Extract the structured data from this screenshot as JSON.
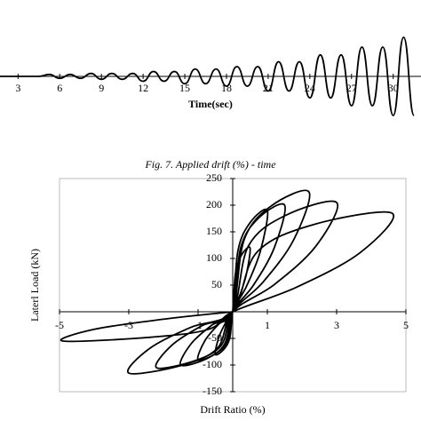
{
  "chart_data": [
    {
      "type": "line",
      "caption": "Fig. 7.  Applied drift (%) - time",
      "x_label": "Time(sec)",
      "x": [
        1.7,
        4.5,
        5.25,
        6.0,
        6.75,
        7.5,
        8.25,
        9.0,
        9.75,
        10.5,
        11.25,
        12.0,
        12.75,
        13.5,
        14.25,
        15.0,
        15.75,
        16.5,
        17.25,
        18.0,
        18.75,
        19.5,
        20.25,
        21.0,
        21.75,
        22.5,
        23.25,
        24.0,
        24.75,
        25.5,
        26.25,
        27.0,
        27.75,
        28.5,
        29.25,
        30.0,
        30.75,
        31.5
      ],
      "values": [
        0,
        0,
        0.2,
        -0.2,
        0.2,
        -0.2,
        0.3,
        -0.3,
        0.3,
        -0.3,
        0.3,
        -0.5,
        0.5,
        -0.5,
        0.5,
        -0.75,
        0.75,
        -0.75,
        0.75,
        -1.0,
        1.0,
        -1.0,
        1.0,
        -1.5,
        1.5,
        -1.5,
        1.5,
        -2.2,
        2.2,
        -2.2,
        2.2,
        -3.0,
        3.0,
        -3.0,
        3.0,
        -4.0,
        4.0,
        -4.0
      ],
      "color": "#000000",
      "xlim": [
        1.7,
        32
      ],
      "ylim": [
        -4.5,
        4.5
      ],
      "xticks": [
        3,
        6,
        9,
        12,
        15,
        18,
        21,
        24,
        27,
        30
      ]
    },
    {
      "type": "line",
      "x_label": "Drift Ratio (%)",
      "y_label": "Laterl Load (kN)",
      "color": "#000000",
      "x": [
        0,
        0.08,
        0.25,
        0.5,
        0.4,
        0.2,
        0,
        -0.08,
        -0.25,
        -0.5,
        -0.4,
        -0.2,
        0,
        0.15,
        0.5,
        1.0,
        0.8,
        0.4,
        0,
        -0.15,
        -0.5,
        -1.0,
        -0.8,
        -0.4,
        0,
        0.23,
        0.75,
        1.5,
        1.2,
        0.6,
        0,
        -0.23,
        -0.75,
        -1.5,
        -1.2,
        -0.6,
        0,
        0.33,
        1.1,
        2.2,
        1.76,
        0.88,
        0,
        -0.33,
        -1.1,
        -2.2,
        -1.76,
        -0.88,
        0,
        0.45,
        1.5,
        3.0,
        2.4,
        1.2,
        0,
        -0.45,
        -1.5,
        -3.0,
        -2.4,
        -1.2,
        0,
        0.69,
        2.3,
        4.6,
        3.68,
        1.84,
        0,
        -0.7,
        -2.4,
        -4.9,
        -4.0,
        -2.0,
        0
      ],
      "values": [
        0,
        72,
        106,
        120,
        72,
        30,
        0,
        -48,
        -70,
        -80,
        -48,
        -20,
        0,
        114,
        167,
        190,
        114,
        48,
        0,
        -54,
        -79,
        -90,
        -54,
        -23,
        0,
        120,
        176,
        200,
        120,
        50,
        0,
        -60,
        -88,
        -100,
        -60,
        -25,
        0,
        135,
        198,
        225,
        135,
        56,
        0,
        -63,
        -92,
        -105,
        -63,
        -26,
        0,
        123,
        180,
        205,
        123,
        51,
        0,
        -69,
        -101,
        -115,
        -69,
        -29,
        0,
        111,
        163,
        185,
        111,
        46,
        0,
        -33,
        -48,
        -55,
        -33,
        -14,
        0
      ],
      "xlim": [
        -5,
        5
      ],
      "ylim": [
        -150,
        250
      ],
      "xticks": [
        -5,
        -3,
        -1,
        1,
        3,
        5
      ],
      "yticks": [
        250,
        200,
        150,
        100,
        50,
        -50,
        -100,
        -150
      ]
    }
  ]
}
